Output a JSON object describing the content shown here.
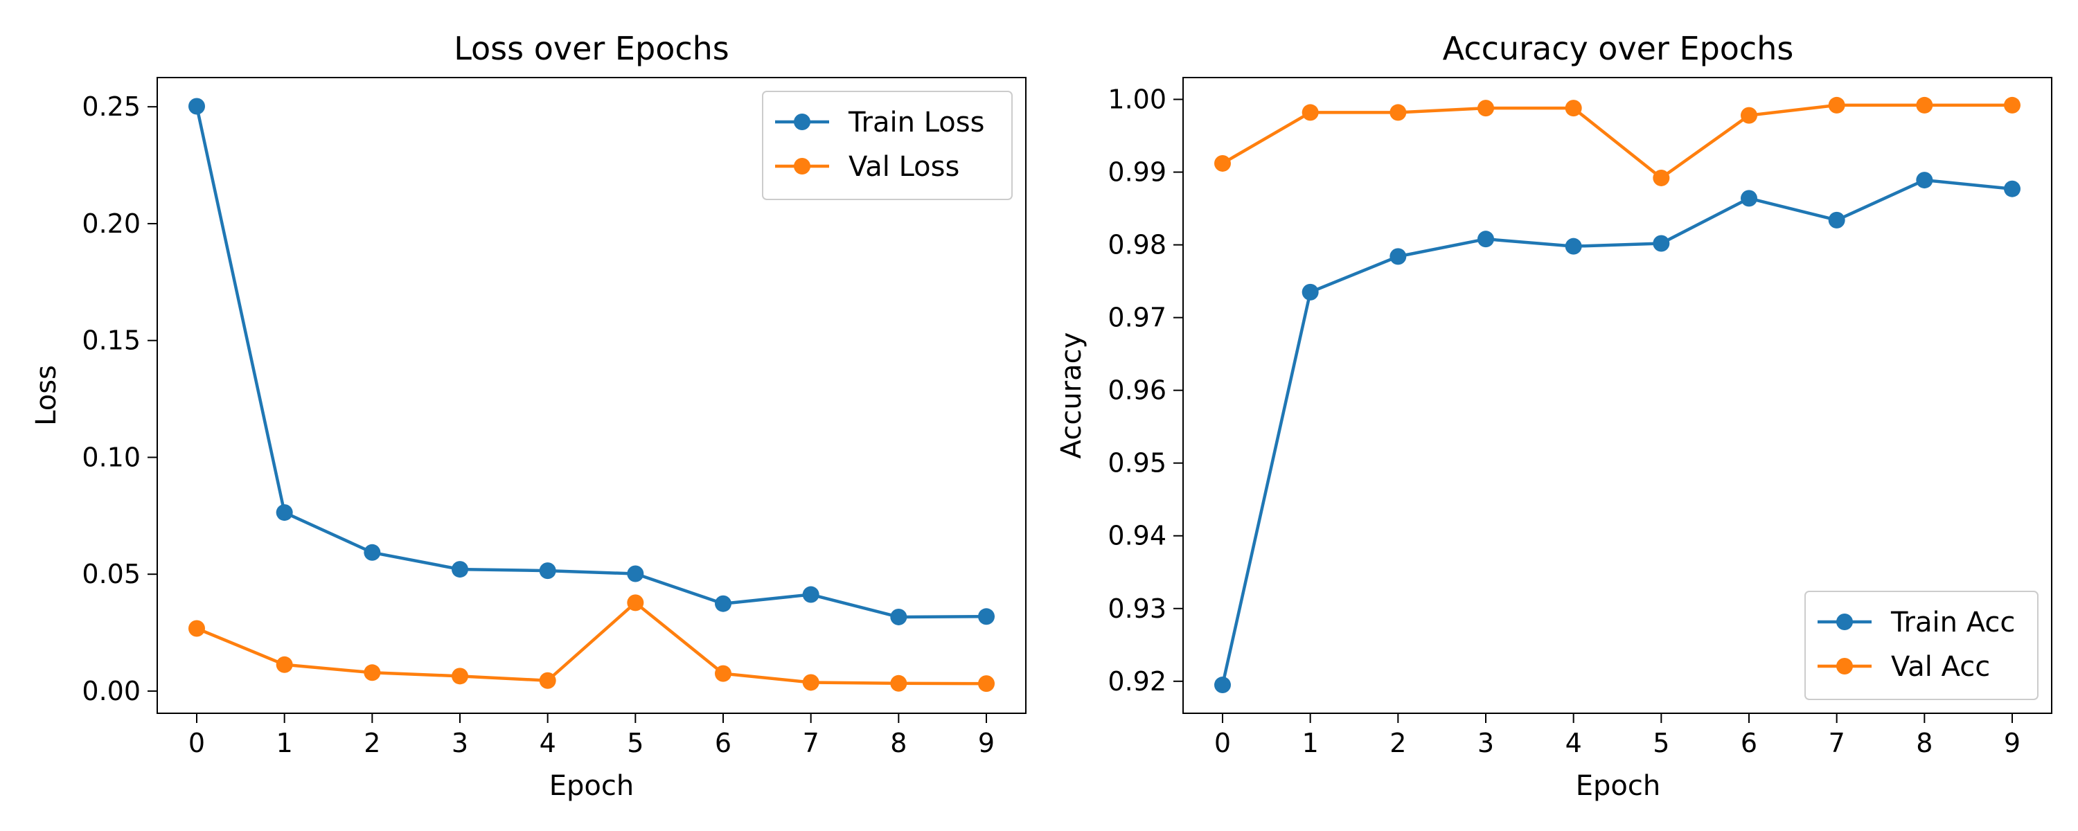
{
  "chart_data": [
    {
      "type": "line",
      "title": "Loss over Epochs",
      "xlabel": "Epoch",
      "ylabel": "Loss",
      "x": [
        0,
        1,
        2,
        3,
        4,
        5,
        6,
        7,
        8,
        9
      ],
      "xticks": [
        0,
        1,
        2,
        3,
        4,
        5,
        6,
        7,
        8,
        9
      ],
      "xtick_labels": [
        "0",
        "1",
        "2",
        "3",
        "4",
        "5",
        "6",
        "7",
        "8",
        "9"
      ],
      "yticks": [
        0.0,
        0.05,
        0.1,
        0.15,
        0.2,
        0.25
      ],
      "ytick_labels": [
        "0.00",
        "0.05",
        "0.10",
        "0.15",
        "0.20",
        "0.25"
      ],
      "xlim": [
        -0.45,
        9.45
      ],
      "ylim": [
        -0.0095,
        0.2625
      ],
      "grid": false,
      "legend_position": "top-right",
      "series": [
        {
          "name": "Train Loss",
          "color": "#1f77b4",
          "values": [
            0.2502,
            0.0764,
            0.0593,
            0.0521,
            0.0515,
            0.0502,
            0.0374,
            0.0413,
            0.0317,
            0.0319
          ]
        },
        {
          "name": "Val Loss",
          "color": "#ff7f0e",
          "values": [
            0.0268,
            0.0113,
            0.0079,
            0.0064,
            0.0045,
            0.0378,
            0.0075,
            0.0037,
            0.0033,
            0.0032
          ]
        }
      ]
    },
    {
      "type": "line",
      "title": "Accuracy over Epochs",
      "xlabel": "Epoch",
      "ylabel": "Accuracy",
      "x": [
        0,
        1,
        2,
        3,
        4,
        5,
        6,
        7,
        8,
        9
      ],
      "xticks": [
        0,
        1,
        2,
        3,
        4,
        5,
        6,
        7,
        8,
        9
      ],
      "xtick_labels": [
        "0",
        "1",
        "2",
        "3",
        "4",
        "5",
        "6",
        "7",
        "8",
        "9"
      ],
      "yticks": [
        0.92,
        0.93,
        0.94,
        0.95,
        0.96,
        0.97,
        0.98,
        0.99,
        1.0
      ],
      "ytick_labels": [
        "0.92",
        "0.93",
        "0.94",
        "0.95",
        "0.96",
        "0.97",
        "0.98",
        "0.99",
        "1.00"
      ],
      "xlim": [
        -0.45,
        9.45
      ],
      "ylim": [
        0.9156,
        1.003
      ],
      "grid": false,
      "legend_position": "bottom-right",
      "series": [
        {
          "name": "Train Acc",
          "color": "#1f77b4",
          "values": [
            0.9195,
            0.9735,
            0.9784,
            0.9808,
            0.9798,
            0.9802,
            0.9864,
            0.9834,
            0.9889,
            0.9877
          ]
        },
        {
          "name": "Val Acc",
          "color": "#ff7f0e",
          "values": [
            0.9912,
            0.9982,
            0.9982,
            0.9988,
            0.9988,
            0.9892,
            0.9978,
            0.9992,
            0.9992,
            0.9992
          ]
        }
      ]
    }
  ]
}
